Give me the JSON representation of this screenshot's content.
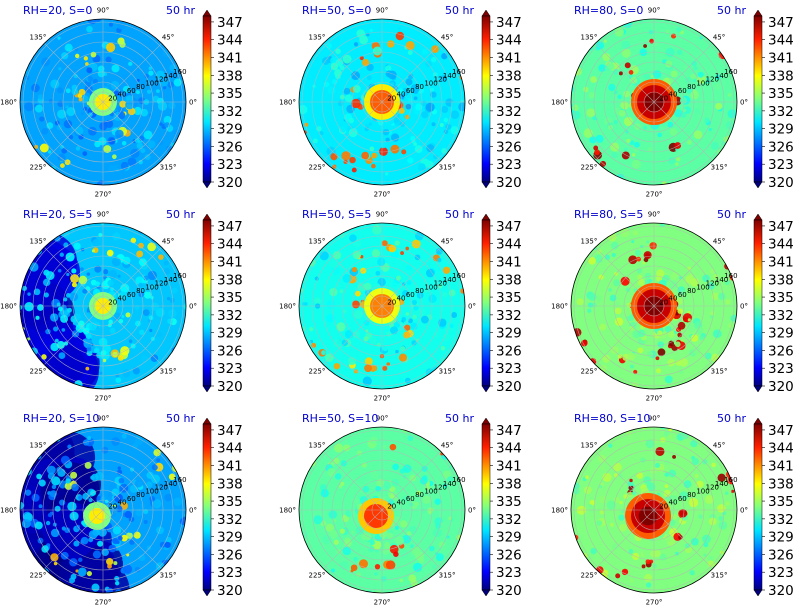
{
  "figure": {
    "time_label": "50 hr",
    "colorbar_ticks": [
      "347",
      "344",
      "341",
      "338",
      "335",
      "332",
      "329",
      "326",
      "323",
      "320"
    ],
    "angle_labels": [
      "0°",
      "45°",
      "90°",
      "135°",
      "180°",
      "225°",
      "270°",
      "315°"
    ],
    "radial_labels": [
      "20",
      "40",
      "60",
      "80",
      "100",
      "120",
      "140",
      "160"
    ],
    "colormap": [
      "#00007f",
      "#0000ff",
      "#007fff",
      "#00ffff",
      "#7fff7f",
      "#ffff00",
      "#ff7f00",
      "#ff0000",
      "#7f0000"
    ]
  },
  "chart_data": [
    {
      "type": "heatmap",
      "title": "RH=20, S=0",
      "time": "50 hr",
      "projection": "polar",
      "theta_ticks_deg": [
        0,
        45,
        90,
        135,
        180,
        225,
        270,
        315
      ],
      "r_ticks": [
        20,
        40,
        60,
        80,
        100,
        120,
        140,
        160
      ],
      "colorbar": {
        "min": 320,
        "max": 348,
        "ticks": [
          320,
          323,
          326,
          329,
          332,
          335,
          338,
          341,
          344,
          347
        ]
      },
      "value_range": [
        324,
        340
      ],
      "dominant_value": 328
    },
    {
      "type": "heatmap",
      "title": "RH=50, S=0",
      "time": "50 hr",
      "projection": "polar",
      "theta_ticks_deg": [
        0,
        45,
        90,
        135,
        180,
        225,
        270,
        315
      ],
      "r_ticks": [
        20,
        40,
        60,
        80,
        100,
        120,
        140,
        160
      ],
      "colorbar": {
        "min": 320,
        "max": 348,
        "ticks": [
          320,
          323,
          326,
          329,
          332,
          335,
          338,
          341,
          344,
          347
        ]
      },
      "value_range": [
        326,
        344
      ],
      "dominant_value": 330
    },
    {
      "type": "heatmap",
      "title": "RH=80, S=0",
      "time": "50 hr",
      "projection": "polar",
      "theta_ticks_deg": [
        0,
        45,
        90,
        135,
        180,
        225,
        270,
        315
      ],
      "r_ticks": [
        20,
        40,
        60,
        80,
        100,
        120,
        140,
        160
      ],
      "colorbar": {
        "min": 320,
        "max": 348,
        "ticks": [
          320,
          323,
          326,
          329,
          332,
          335,
          338,
          341,
          344,
          347
        ]
      },
      "value_range": [
        331,
        348
      ],
      "dominant_value": 333
    },
    {
      "type": "heatmap",
      "title": "RH=20, S=5",
      "time": "50 hr",
      "projection": "polar",
      "theta_ticks_deg": [
        0,
        45,
        90,
        135,
        180,
        225,
        270,
        315
      ],
      "r_ticks": [
        20,
        40,
        60,
        80,
        100,
        120,
        140,
        160
      ],
      "colorbar": {
        "min": 320,
        "max": 348,
        "ticks": [
          320,
          323,
          326,
          329,
          332,
          335,
          338,
          341,
          344,
          347
        ]
      },
      "value_range": [
        321,
        340
      ],
      "dominant_value": 329
    },
    {
      "type": "heatmap",
      "title": "RH=50, S=5",
      "time": "50 hr",
      "projection": "polar",
      "theta_ticks_deg": [
        0,
        45,
        90,
        135,
        180,
        225,
        270,
        315
      ],
      "r_ticks": [
        20,
        40,
        60,
        80,
        100,
        120,
        140,
        160
      ],
      "colorbar": {
        "min": 320,
        "max": 348,
        "ticks": [
          320,
          323,
          326,
          329,
          332,
          335,
          338,
          341,
          344,
          347
        ]
      },
      "value_range": [
        324,
        343
      ],
      "dominant_value": 331
    },
    {
      "type": "heatmap",
      "title": "RH=80, S=5",
      "time": "50 hr",
      "projection": "polar",
      "theta_ticks_deg": [
        0,
        45,
        90,
        135,
        180,
        225,
        270,
        315
      ],
      "r_ticks": [
        20,
        40,
        60,
        80,
        100,
        120,
        140,
        160
      ],
      "colorbar": {
        "min": 320,
        "max": 348,
        "ticks": [
          320,
          323,
          326,
          329,
          332,
          335,
          338,
          341,
          344,
          347
        ]
      },
      "value_range": [
        331,
        348
      ],
      "dominant_value": 334
    },
    {
      "type": "heatmap",
      "title": "RH=20, S=10",
      "time": "50 hr",
      "projection": "polar",
      "theta_ticks_deg": [
        0,
        45,
        90,
        135,
        180,
        225,
        270,
        315
      ],
      "r_ticks": [
        20,
        40,
        60,
        80,
        100,
        120,
        140,
        160
      ],
      "colorbar": {
        "min": 320,
        "max": 348,
        "ticks": [
          320,
          323,
          326,
          329,
          332,
          335,
          338,
          341,
          344,
          347
        ]
      },
      "value_range": [
        320,
        340
      ],
      "dominant_value": 328
    },
    {
      "type": "heatmap",
      "title": "RH=50, S=10",
      "time": "50 hr",
      "projection": "polar",
      "theta_ticks_deg": [
        0,
        45,
        90,
        135,
        180,
        225,
        270,
        315
      ],
      "r_ticks": [
        20,
        40,
        60,
        80,
        100,
        120,
        140,
        160
      ],
      "colorbar": {
        "min": 320,
        "max": 348,
        "ticks": [
          320,
          323,
          326,
          329,
          332,
          335,
          338,
          341,
          344,
          347
        ]
      },
      "value_range": [
        325,
        345
      ],
      "dominant_value": 333
    },
    {
      "type": "heatmap",
      "title": "RH=80, S=10",
      "time": "50 hr",
      "projection": "polar",
      "theta_ticks_deg": [
        0,
        45,
        90,
        135,
        180,
        225,
        270,
        315
      ],
      "r_ticks": [
        20,
        40,
        60,
        80,
        100,
        120,
        140,
        160
      ],
      "colorbar": {
        "min": 320,
        "max": 348,
        "ticks": [
          320,
          323,
          326,
          329,
          332,
          335,
          338,
          341,
          344,
          347
        ]
      },
      "value_range": [
        331,
        348
      ],
      "dominant_value": 334
    }
  ]
}
